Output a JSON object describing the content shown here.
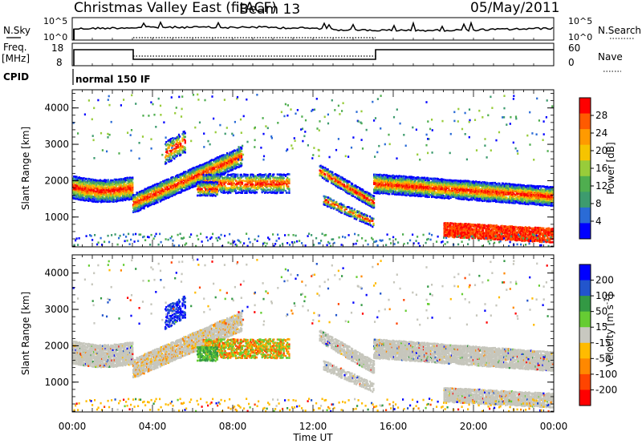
{
  "header": {
    "radar": "Christmas Valley East (fitACF)",
    "beam": "Beam 13",
    "date": "05/May/2011"
  },
  "noise_panel": {
    "left_label": "N.Sky",
    "right_label": "N.Search",
    "left_ticks": [
      "10^5",
      "10^0"
    ],
    "right_ticks": [
      "10^5",
      "10^0"
    ]
  },
  "freq_panel": {
    "label_line1": "Freq.",
    "label_line2": "[MHz]",
    "left_ticks": [
      "18",
      "8"
    ],
    "right_label": "Nave",
    "right_ticks": [
      "60",
      "0"
    ]
  },
  "cpid": {
    "label": "CPID",
    "value": "normal 150 IF"
  },
  "colors": {
    "power_scale": [
      "#0000ff",
      "#2a6bd6",
      "#3d9b6e",
      "#4fae4f",
      "#98cc3a",
      "#f6c400",
      "#ff9a00",
      "#ff5a00",
      "#ff0000"
    ],
    "velocity_scale": [
      "#0000ff",
      "#2255cc",
      "#339944",
      "#66cc33",
      "#c8c8c0",
      "#ffbb00",
      "#ff8800",
      "#ff4400",
      "#ff0000"
    ],
    "ground_scatter": "#c6c6bc"
  },
  "chart_data": [
    {
      "type": "heatmap",
      "title": "",
      "xlabel": "",
      "ylabel": "Slant Range [km]",
      "x_ticks": [
        "00:00",
        "04:00",
        "08:00",
        "12:00",
        "16:00",
        "20:00",
        "00:00"
      ],
      "y_ticks": [
        "1000",
        "2000",
        "3000",
        "4000"
      ],
      "x_range_hours": [
        0,
        24
      ],
      "y_range_km": [
        180,
        4500
      ],
      "colorbar_label": "Power [dB]",
      "colorbar_ticks": [
        "28",
        "24",
        "20",
        "16",
        "12",
        "8",
        "4"
      ],
      "colorbar_range_db": [
        0,
        32
      ]
    },
    {
      "type": "heatmap",
      "title": "",
      "xlabel": "Time UT",
      "ylabel": "Slant Range [km]",
      "x_ticks": [
        "00:00",
        "04:00",
        "08:00",
        "12:00",
        "16:00",
        "20:00",
        "00:00"
      ],
      "y_ticks": [
        "1000",
        "2000",
        "3000",
        "4000"
      ],
      "x_range_hours": [
        0,
        24
      ],
      "y_range_km": [
        180,
        4500
      ],
      "colorbar_label": "Velocity [m s-1]",
      "colorbar_ticks": [
        "200",
        "100",
        "50",
        "15",
        "-15",
        "-50",
        "-100",
        "-200"
      ]
    }
  ]
}
